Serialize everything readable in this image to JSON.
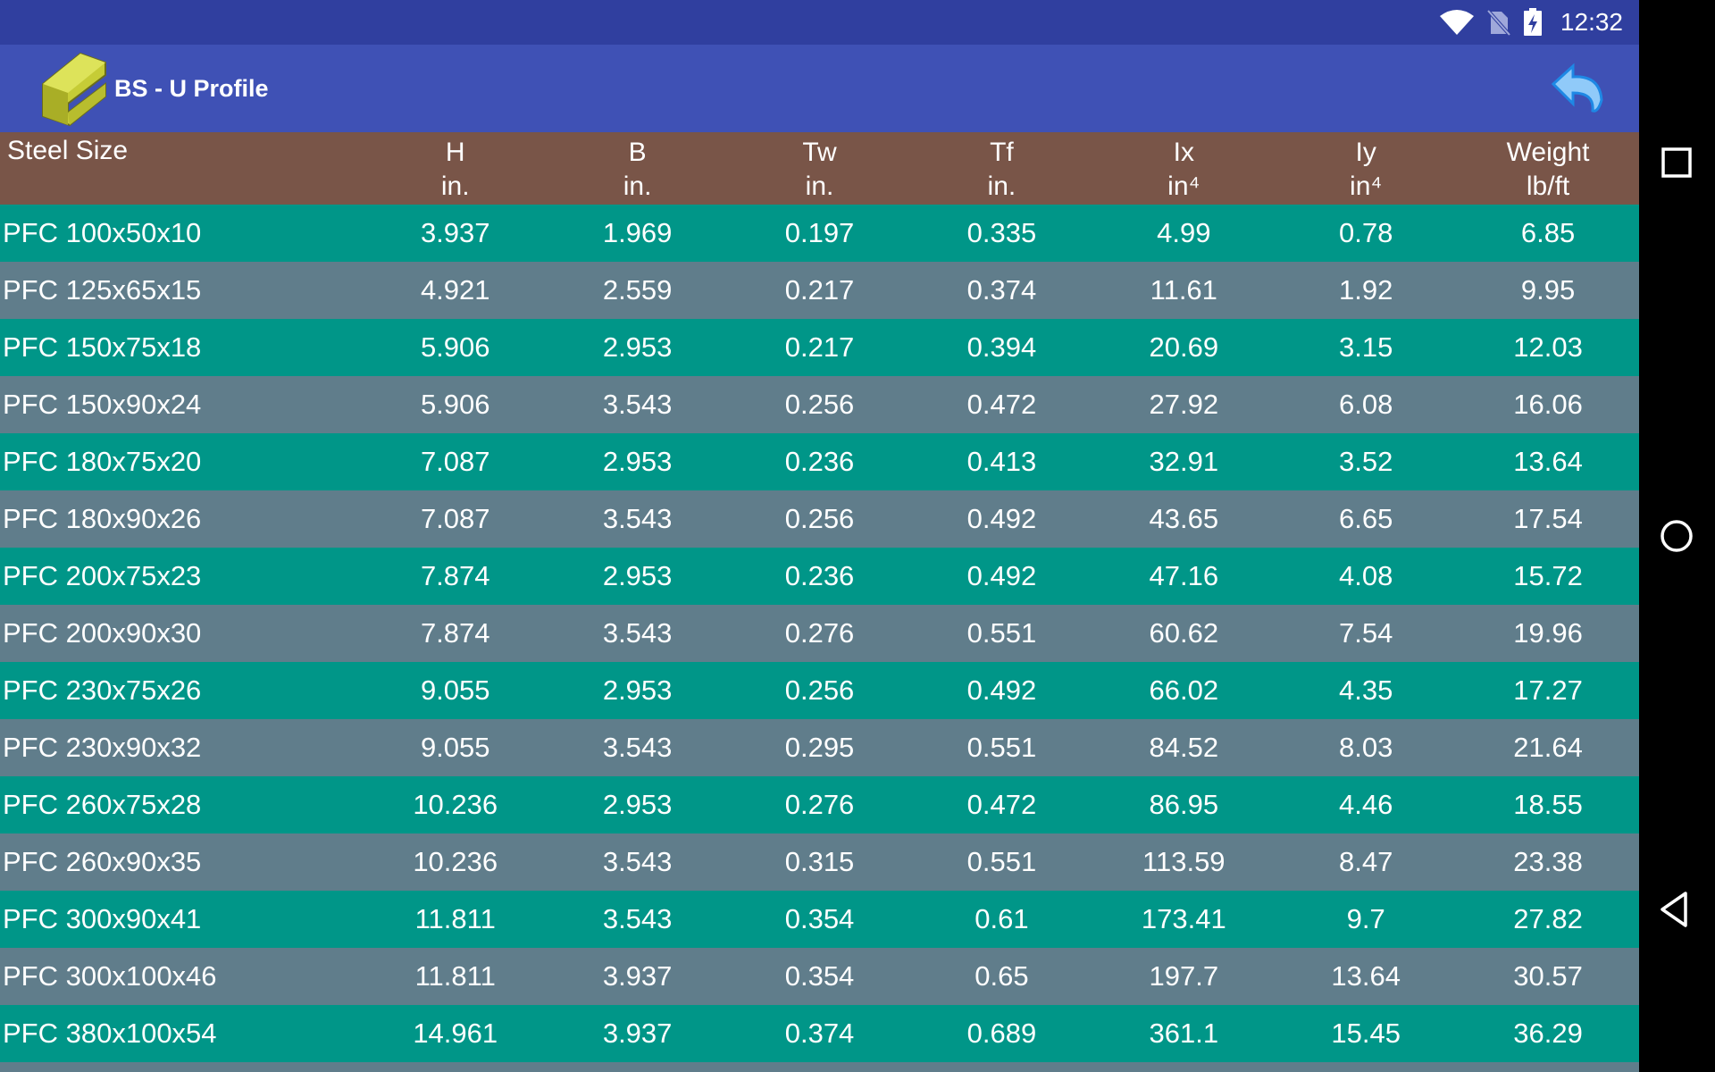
{
  "status_bar": {
    "time": "12:32",
    "icons": [
      "wifi-icon",
      "no-sim-icon",
      "battery-charging-icon"
    ],
    "color": "#303f9f"
  },
  "app_bar": {
    "title": "BS - U Profile",
    "logo": "steel-channel-logo",
    "back_icon": "undo-arrow-icon",
    "color": "#3f51b5"
  },
  "table": {
    "header_color": "#795548",
    "row_colors": [
      "#009688",
      "#607d8b"
    ],
    "columns": [
      {
        "name": "Steel Size",
        "unit": ""
      },
      {
        "name": "H",
        "unit": "in."
      },
      {
        "name": "B",
        "unit": "in."
      },
      {
        "name": "Tw",
        "unit": "in."
      },
      {
        "name": "Tf",
        "unit": "in."
      },
      {
        "name": "Ix",
        "unit": "in⁴"
      },
      {
        "name": "Iy",
        "unit": "in⁴"
      },
      {
        "name": "Weight",
        "unit": "lb/ft"
      }
    ],
    "rows": [
      [
        "PFC 100x50x10",
        "3.937",
        "1.969",
        "0.197",
        "0.335",
        "4.99",
        "0.78",
        "6.85"
      ],
      [
        "PFC 125x65x15",
        "4.921",
        "2.559",
        "0.217",
        "0.374",
        "11.61",
        "1.92",
        "9.95"
      ],
      [
        "PFC 150x75x18",
        "5.906",
        "2.953",
        "0.217",
        "0.394",
        "20.69",
        "3.15",
        "12.03"
      ],
      [
        "PFC 150x90x24",
        "5.906",
        "3.543",
        "0.256",
        "0.472",
        "27.92",
        "6.08",
        "16.06"
      ],
      [
        "PFC 180x75x20",
        "7.087",
        "2.953",
        "0.236",
        "0.413",
        "32.91",
        "3.52",
        "13.64"
      ],
      [
        "PFC 180x90x26",
        "7.087",
        "3.543",
        "0.256",
        "0.492",
        "43.65",
        "6.65",
        "17.54"
      ],
      [
        "PFC 200x75x23",
        "7.874",
        "2.953",
        "0.236",
        "0.492",
        "47.16",
        "4.08",
        "15.72"
      ],
      [
        "PFC 200x90x30",
        "7.874",
        "3.543",
        "0.276",
        "0.551",
        "60.62",
        "7.54",
        "19.96"
      ],
      [
        "PFC 230x75x26",
        "9.055",
        "2.953",
        "0.256",
        "0.492",
        "66.02",
        "4.35",
        "17.27"
      ],
      [
        "PFC 230x90x32",
        "9.055",
        "3.543",
        "0.295",
        "0.551",
        "84.52",
        "8.03",
        "21.64"
      ],
      [
        "PFC 260x75x28",
        "10.236",
        "2.953",
        "0.276",
        "0.472",
        "86.95",
        "4.46",
        "18.55"
      ],
      [
        "PFC 260x90x35",
        "10.236",
        "3.543",
        "0.315",
        "0.551",
        "113.59",
        "8.47",
        "23.38"
      ],
      [
        "PFC 300x90x41",
        "11.811",
        "3.543",
        "0.354",
        "0.61",
        "173.41",
        "9.7",
        "27.82"
      ],
      [
        "PFC 300x100x46",
        "11.811",
        "3.937",
        "0.354",
        "0.65",
        "197.7",
        "13.64",
        "30.57"
      ],
      [
        "PFC 380x100x54",
        "14.961",
        "3.937",
        "0.374",
        "0.689",
        "361.1",
        "15.45",
        "36.29"
      ]
    ]
  },
  "nav_bar": {
    "buttons": [
      "recents-icon",
      "home-icon",
      "back-icon"
    ]
  }
}
